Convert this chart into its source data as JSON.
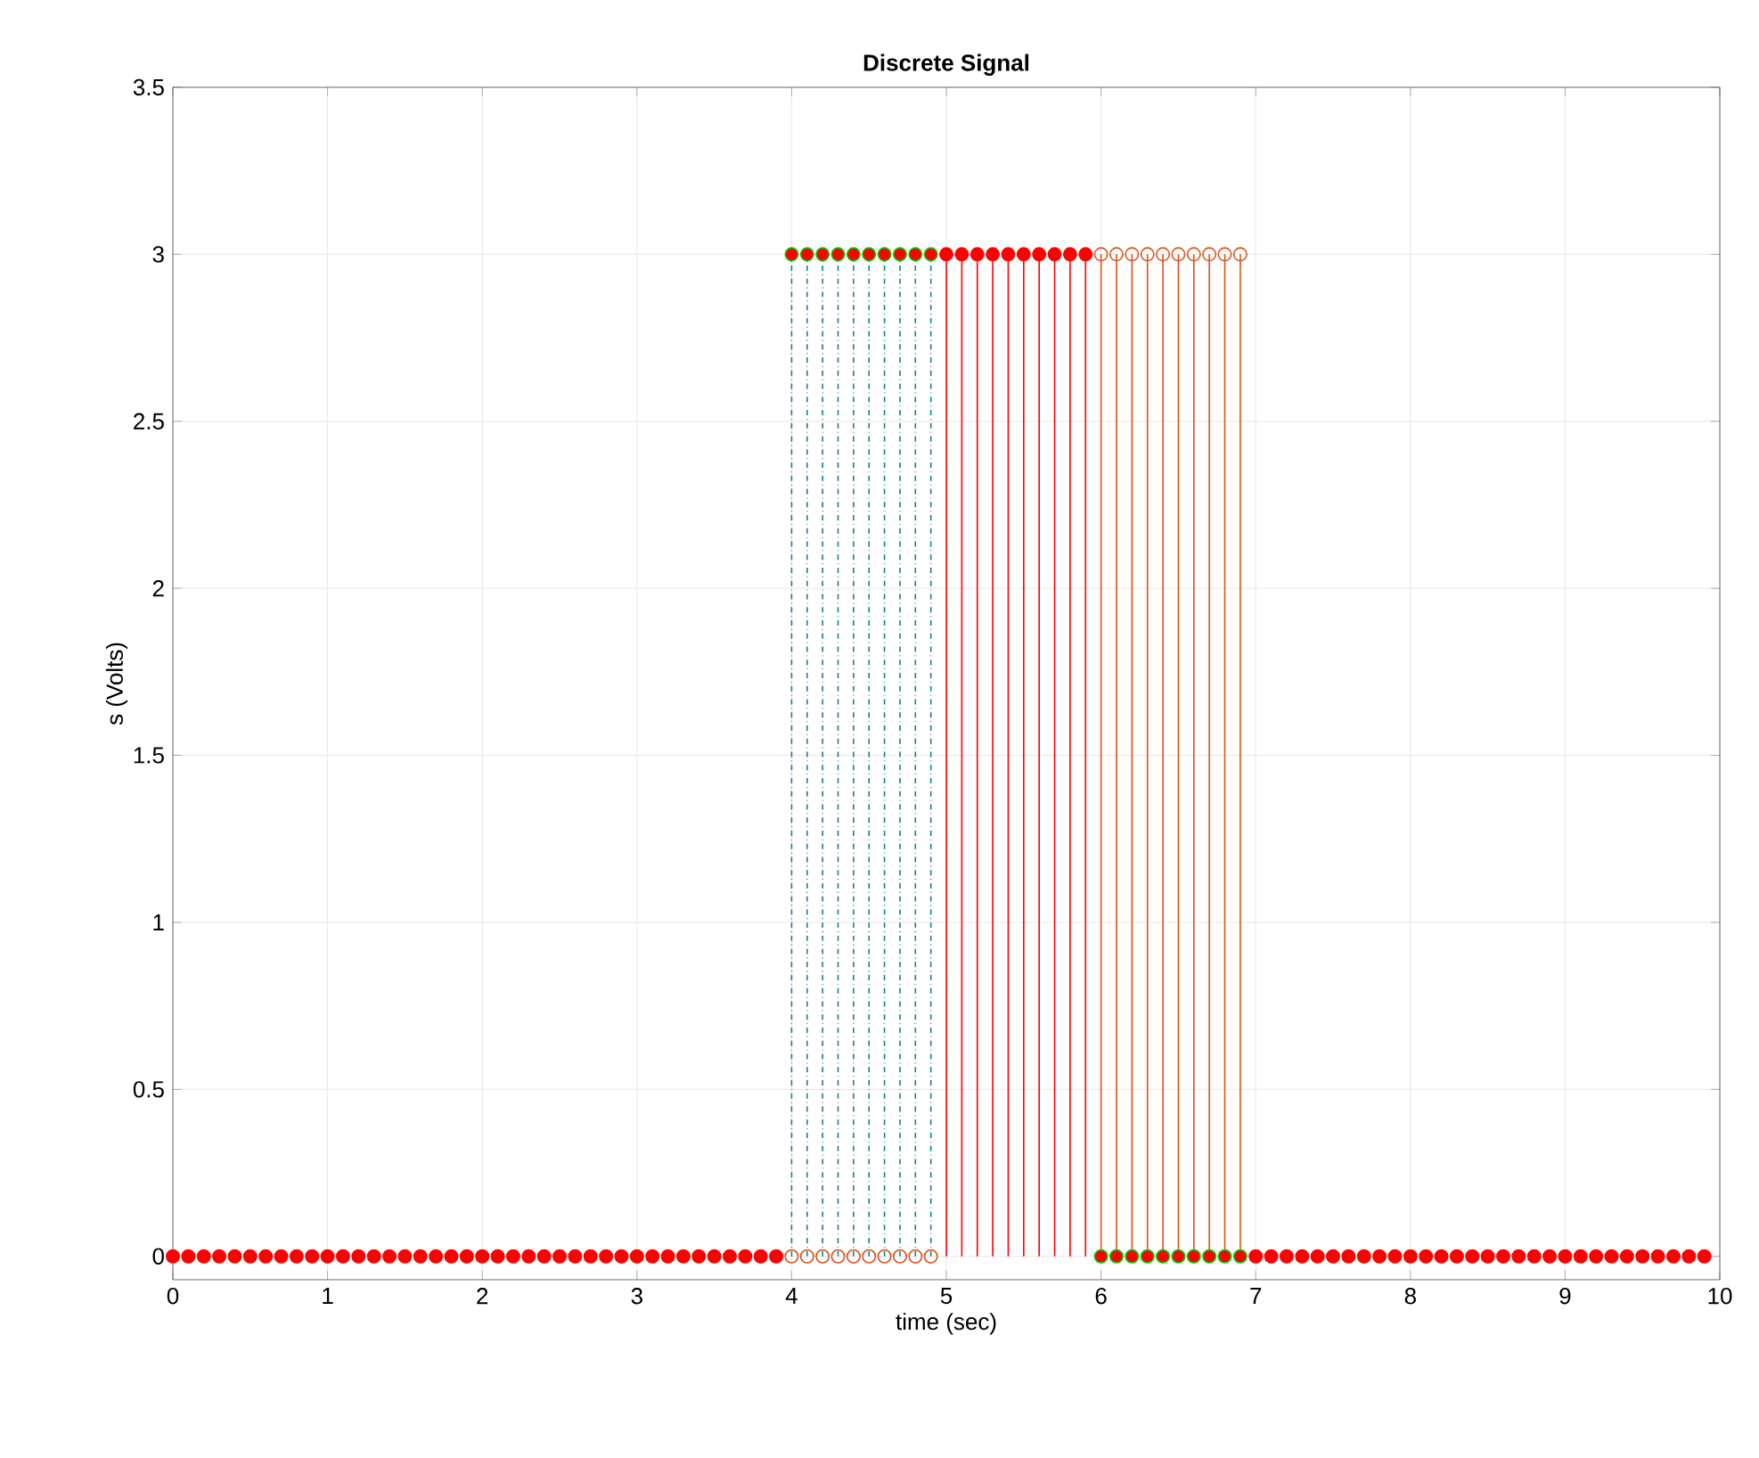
{
  "chart_data": {
    "type": "lollipop",
    "title": "Discrete Signal",
    "xlabel": "time (sec)",
    "ylabel": "s (Volts)",
    "x": [
      0,
      0.1,
      0.2,
      0.3,
      0.4,
      0.5,
      0.6,
      0.7,
      0.8,
      0.9,
      1,
      1.1,
      1.2,
      1.3,
      1.4,
      1.5,
      1.6,
      1.7,
      1.8,
      1.9,
      2,
      2.1,
      2.2,
      2.3,
      2.4,
      2.5,
      2.6,
      2.7,
      2.8,
      2.9,
      3,
      3.1,
      3.2,
      3.3,
      3.4,
      3.5,
      3.6,
      3.7,
      3.8,
      3.9,
      4,
      4.1,
      4.2,
      4.3,
      4.4,
      4.5,
      4.6,
      4.7,
      4.8,
      4.9,
      5,
      5.1,
      5.2,
      5.3,
      5.4,
      5.5,
      5.6,
      5.7,
      5.8,
      5.9,
      6,
      6.1,
      6.2,
      6.3,
      6.4,
      6.5,
      6.6,
      6.7,
      6.8,
      6.9,
      7,
      7.1,
      7.2,
      7.3,
      7.4,
      7.5,
      7.6,
      7.7,
      7.8,
      7.9,
      8,
      8.1,
      8.2,
      8.3,
      8.4,
      8.5,
      8.6,
      8.7,
      8.8,
      8.9,
      9,
      9.1,
      9.2,
      9.3,
      9.4,
      9.5,
      9.6,
      9.7,
      9.8,
      9.9
    ],
    "series": [
      {
        "color": "#d95319",
        "marker": "circle",
        "line_style": "solid",
        "values": [
          null,
          null,
          null,
          null,
          null,
          null,
          null,
          null,
          null,
          null,
          null,
          null,
          null,
          null,
          null,
          null,
          null,
          null,
          null,
          null,
          null,
          null,
          null,
          null,
          null,
          null,
          null,
          null,
          null,
          null,
          null,
          null,
          null,
          null,
          null,
          null,
          null,
          null,
          null,
          null,
          0,
          0,
          0,
          0,
          0,
          0,
          0,
          0,
          0,
          0,
          null,
          null,
          null,
          null,
          null,
          null,
          null,
          null,
          null,
          null,
          3,
          3,
          3,
          3,
          3,
          3,
          3,
          3,
          3,
          3,
          null,
          null,
          null,
          null,
          null,
          null,
          null,
          null,
          null,
          null,
          null,
          null,
          null,
          null,
          null,
          null,
          null,
          null,
          null,
          null,
          null,
          null,
          null,
          null,
          null,
          null,
          null,
          null,
          null,
          null
        ]
      },
      {
        "color": "#ff0000",
        "marker": "circle",
        "line_style": "solid",
        "values": [
          0,
          0,
          0,
          0,
          0,
          0,
          0,
          0,
          0,
          0,
          0,
          0,
          0,
          0,
          0,
          0,
          0,
          0,
          0,
          0,
          0,
          0,
          0,
          0,
          0,
          0,
          0,
          0,
          0,
          0,
          0,
          0,
          0,
          0,
          0,
          0,
          0,
          0,
          0,
          0,
          null,
          null,
          null,
          null,
          null,
          null,
          null,
          null,
          null,
          null,
          3,
          3,
          3,
          3,
          3,
          3,
          3,
          3,
          3,
          3,
          null,
          null,
          null,
          null,
          null,
          null,
          null,
          null,
          null,
          null,
          0,
          0,
          0,
          0,
          0,
          0,
          0,
          0,
          0,
          0,
          0,
          0,
          0,
          0,
          0,
          0,
          0,
          0,
          0,
          0,
          0,
          0,
          0,
          0,
          0,
          0,
          0,
          0,
          0,
          0
        ]
      },
      {
        "color": "#00cc00",
        "marker": "circle",
        "line_style": "dashdot",
        "values": [
          null,
          null,
          null,
          null,
          null,
          null,
          null,
          null,
          null,
          null,
          null,
          null,
          null,
          null,
          null,
          null,
          null,
          null,
          null,
          null,
          null,
          null,
          null,
          null,
          null,
          null,
          null,
          null,
          null,
          null,
          null,
          null,
          null,
          null,
          null,
          null,
          null,
          null,
          null,
          null,
          3,
          3,
          3,
          3,
          3,
          3,
          3,
          3,
          3,
          3,
          null,
          null,
          null,
          null,
          null,
          null,
          null,
          null,
          null,
          null,
          0,
          0,
          0,
          0,
          0,
          0,
          0,
          0,
          0,
          0,
          null,
          null,
          null,
          null,
          null,
          null,
          null,
          null,
          null,
          null,
          null,
          null,
          null,
          null,
          null,
          null,
          null,
          null,
          null,
          null,
          null,
          null,
          null,
          null,
          null,
          null,
          null,
          null,
          null,
          null
        ]
      }
    ],
    "xlim": [
      0,
      10
    ],
    "xticks": [
      0,
      1,
      2,
      3,
      4,
      5,
      6,
      7,
      8,
      9,
      10
    ],
    "ylim": [
      -0.07,
      3.5
    ],
    "yticks": [
      0,
      0.5,
      1,
      1.5,
      2,
      2.5,
      3,
      3.5
    ],
    "grid": true
  }
}
